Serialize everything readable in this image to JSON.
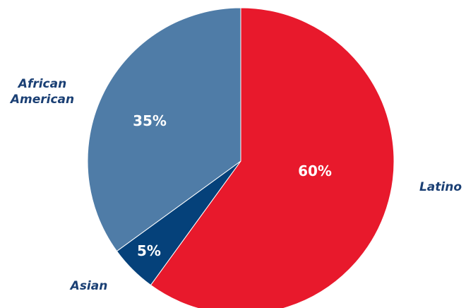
{
  "chart_data": {
    "type": "pie",
    "slices": [
      {
        "category": "Latino",
        "value": 60,
        "label": "60%",
        "color": "#e8192c"
      },
      {
        "category": "Asian",
        "value": 5,
        "label": "5%",
        "color": "#05417a"
      },
      {
        "category": "African American",
        "value": 35,
        "label": "35%",
        "color": "#4f7ca7"
      }
    ],
    "category_label_color": "#1a3f74",
    "start_angle": "12 o'clock",
    "direction": "clockwise"
  }
}
